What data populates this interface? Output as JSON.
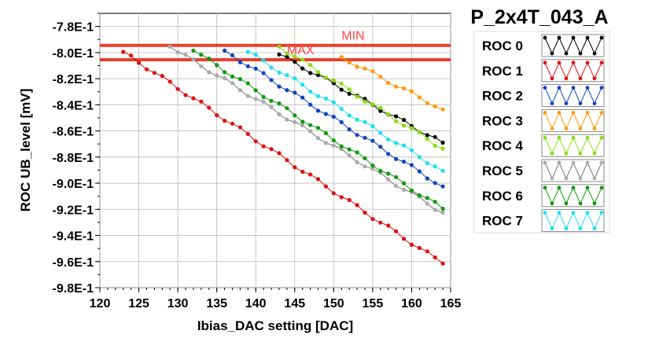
{
  "title": "P_2x4T_043_A",
  "chart_data": {
    "type": "line",
    "title": "P_2x4T_043_A",
    "xlabel": "Ibias_DAC setting [DAC]",
    "ylabel": "ROC UB_level [mV]",
    "xlim": [
      120,
      165
    ],
    "ylim": [
      -0.98,
      -0.77
    ],
    "x_ticks": [
      "120",
      "125",
      "130",
      "135",
      "140",
      "145",
      "150",
      "155",
      "160",
      "165"
    ],
    "y_ticks": [
      "-7.8E-1",
      "-8.0E-1",
      "-8.2E-1",
      "-8.4E-1",
      "-8.6E-1",
      "-8.8E-1",
      "-9.0E-1",
      "-9.2E-1",
      "-9.4E-1",
      "-9.6E-1",
      "-9.8E-1"
    ],
    "grid": true,
    "legend_position": "right",
    "thresholds": [
      {
        "label": "MIN",
        "y": -0.7945,
        "color": "#e8402a"
      },
      {
        "label": "MAX",
        "y": -0.8055,
        "color": "#e8402a"
      }
    ],
    "series": [
      {
        "name": "ROC 0",
        "color": "#000000",
        "line_color": "#000000",
        "x_start": 143,
        "x_end": 164,
        "y_start": -0.8015,
        "y_end": -0.869
      },
      {
        "name": "ROC 1",
        "color": "#dd1111",
        "line_color": "#dd1111",
        "x_start": 123,
        "x_end": 164,
        "y_start": -0.7995,
        "y_end": -0.9615
      },
      {
        "name": "ROC 2",
        "color": "#1144bb",
        "line_color": "#1144bb",
        "x_start": 136,
        "x_end": 164,
        "y_start": -0.7985,
        "y_end": -0.9025
      },
      {
        "name": "ROC 3",
        "color": "#ff9911",
        "line_color": "#ff9911",
        "x_start": 151,
        "x_end": 164,
        "y_start": -0.8035,
        "y_end": -0.8435
      },
      {
        "name": "ROC 4",
        "color": "#88dd11",
        "line_color": "#88dd11",
        "x_start": 143,
        "x_end": 164,
        "y_start": -0.7955,
        "y_end": -0.8735
      },
      {
        "name": "ROC 5",
        "color": "#aaaaaa",
        "line_color": "#777777",
        "x_start": 129,
        "x_end": 164,
        "y_start": -0.7955,
        "y_end": -0.9225
      },
      {
        "name": "ROC 6",
        "color": "#119911",
        "line_color": "#119911",
        "x_start": 132,
        "x_end": 164,
        "y_start": -0.7985,
        "y_end": -0.9195
      },
      {
        "name": "ROC 7",
        "color": "#22ddee",
        "line_color": "#22ddee",
        "x_start": 139,
        "x_end": 164,
        "y_start": -0.7995,
        "y_end": -0.8905
      }
    ]
  }
}
